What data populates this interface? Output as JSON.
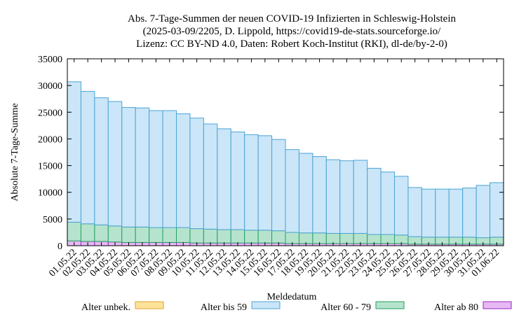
{
  "chart_data": {
    "type": "bar",
    "stacked": true,
    "title_lines": [
      "Abs. 7-Tage-Summen der neuen COVID-19 Infizierten in Schleswig-Holstein",
      "(2025-03-09/2205, D. Lippold, https://covid19-de-stats.sourceforge.io/",
      "Lizenz: CC BY-ND 4.0, Daten: Robert Koch-Institut (RKI), dl-de/by-2-0)"
    ],
    "xlabel": "Meldedatum",
    "ylabel": "Absolute 7-Tage-Summe",
    "ylim": [
      0,
      35000
    ],
    "yticks": [
      0,
      5000,
      10000,
      15000,
      20000,
      25000,
      30000,
      35000
    ],
    "categories": [
      "01.05.22",
      "02.05.22",
      "03.05.22",
      "04.05.22",
      "05.05.22",
      "06.05.22",
      "07.05.22",
      "08.05.22",
      "09.05.22",
      "10.05.22",
      "11.05.22",
      "12.05.22",
      "13.05.22",
      "14.05.22",
      "15.05.22",
      "16.05.22",
      "17.05.22",
      "18.05.22",
      "19.05.22",
      "20.05.22",
      "21.05.22",
      "22.05.22",
      "23.05.22",
      "24.05.22",
      "25.05.22",
      "26.05.22",
      "27.05.22",
      "28.05.22",
      "29.05.22",
      "30.05.22",
      "31.05.22",
      "01.06.22"
    ],
    "legend_position": "bottom",
    "series": [
      {
        "name": "Alter unbek.",
        "color": "#fde29a",
        "stroke": "#e3a32a",
        "values": [
          0,
          0,
          0,
          0,
          0,
          0,
          0,
          0,
          0,
          0,
          0,
          0,
          0,
          0,
          0,
          0,
          0,
          0,
          0,
          0,
          0,
          0,
          0,
          0,
          0,
          0,
          0,
          0,
          0,
          0,
          0,
          0
        ]
      },
      {
        "name": "Alter bis 59",
        "color": "#cbe6f8",
        "stroke": "#4aa3d6",
        "values": [
          26300,
          24800,
          23800,
          23300,
          22400,
          22300,
          21900,
          21900,
          21300,
          20700,
          19700,
          18900,
          18300,
          17900,
          17700,
          17100,
          15500,
          14900,
          14300,
          13800,
          13600,
          13700,
          12400,
          11700,
          11000,
          9200,
          9000,
          9000,
          9000,
          9200,
          9800,
          10200
        ]
      },
      {
        "name": "Alter 60 - 79",
        "color": "#b6e3cd",
        "stroke": "#22a165",
        "values": [
          3500,
          3300,
          3100,
          3000,
          2900,
          2900,
          2800,
          2800,
          2800,
          2700,
          2600,
          2500,
          2500,
          2400,
          2400,
          2300,
          2100,
          2000,
          2000,
          1900,
          1900,
          1900,
          1700,
          1700,
          1600,
          1400,
          1300,
          1300,
          1300,
          1300,
          1200,
          1300
        ]
      },
      {
        "name": "Alter ab 80",
        "color": "#e6b9f3",
        "stroke": "#9b22c5",
        "values": [
          900,
          800,
          800,
          700,
          600,
          600,
          600,
          600,
          600,
          500,
          500,
          500,
          500,
          500,
          500,
          500,
          400,
          400,
          400,
          400,
          400,
          400,
          400,
          400,
          400,
          300,
          300,
          300,
          300,
          300,
          300,
          300
        ]
      }
    ],
    "grid": false
  }
}
